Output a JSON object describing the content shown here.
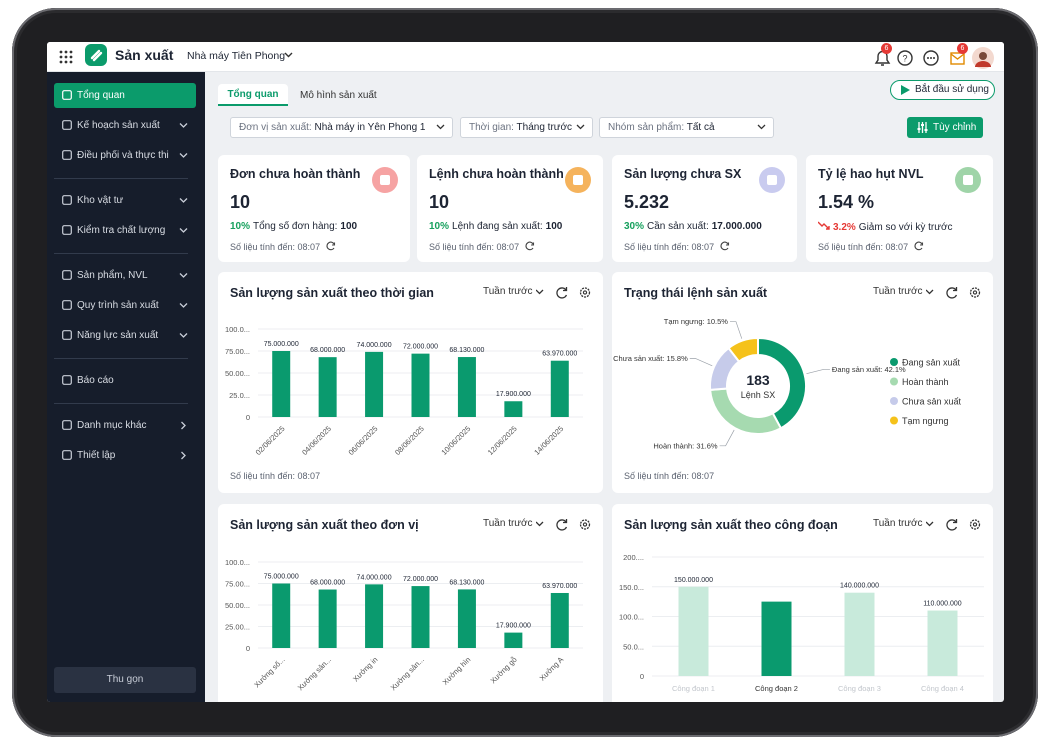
{
  "app": {
    "title": "Sản xuất",
    "factory": "Nhà máy Tiên Phong",
    "notification_count": 6,
    "message_count": 6
  },
  "sidebar": {
    "groups": [
      [
        {
          "label": "Tổng quan",
          "active": true,
          "menu": null
        },
        {
          "label": "Kế hoạch sản xuất",
          "menu": "down"
        },
        {
          "label": "Điều phối và thực thi",
          "menu": "down"
        }
      ],
      [
        {
          "label": "Kho vật tư",
          "menu": "down"
        },
        {
          "label": "Kiểm tra chất lượng",
          "menu": "down"
        }
      ],
      [
        {
          "label": "Sản phẩm, NVL",
          "menu": "down"
        },
        {
          "label": "Quy trình sản xuất",
          "menu": "down"
        },
        {
          "label": "Năng lực sản xuất",
          "menu": "down"
        }
      ],
      [
        {
          "label": "Báo cáo",
          "menu": null
        }
      ],
      [
        {
          "label": "Danh mục khác",
          "menu": "right"
        },
        {
          "label": "Thiết lập",
          "menu": "right"
        }
      ]
    ],
    "collapse": "Thu gọn"
  },
  "tabs": [
    "Tổng quan",
    "Mô hình sản xuất"
  ],
  "start_button": "Bắt đầu sử dụng",
  "filters": [
    {
      "label": "Đơn vị sản xuất:",
      "value": "Nhà máy in Yên Phong 1"
    },
    {
      "label": "Thời gian:",
      "value": "Tháng trước"
    },
    {
      "label": "Nhóm sản phẩm:",
      "value": "Tất cả"
    }
  ],
  "customize_button": "Tùy chỉnh",
  "kpis": [
    {
      "title": "Đơn chưa hoàn thành",
      "value": 10,
      "change": "10%",
      "note": "Tổng số đơn hàng:",
      "note_value": 100,
      "color": "#16a05d",
      "icon_color": "#f6a3a3",
      "updated": "Số liệu tính đến: 08:07"
    },
    {
      "title": "Lệnh chưa hoàn thành",
      "value": 10,
      "change": "10%",
      "note": "Lệnh đang sản xuất:",
      "note_value": 100,
      "color": "#16a05d",
      "icon_color": "#f5b35c",
      "updated": "Số liệu tính đến: 08:07"
    },
    {
      "title": "Sản lượng chưa SX",
      "value": "5.232",
      "change": "30%",
      "note": "Cần sản xuất:",
      "note_value": "17.000.000",
      "color": "#16a05d",
      "icon_color": "#c9cbef",
      "updated": "Số liệu tính đến: 08:07"
    },
    {
      "title": "Tỷ lệ hao hụt NVL",
      "value": "1.54 %",
      "change": "3.2%",
      "note": "Giảm so với kỳ trước",
      "color": "#e53935",
      "icon_color": "#9fd4a8",
      "updated": "Số liệu tính đến: 08:07"
    }
  ],
  "chart_data": [
    {
      "type": "bar",
      "title": "Sản lượng sản xuất theo thời gian",
      "period": "Tuần trước",
      "footnote": "Số liệu tính đến: 08:07",
      "categories": [
        "02/06/2025",
        "04/06/2025",
        "06/06/2025",
        "08/06/2025",
        "10/06/2025",
        "12/06/2025",
        "14/06/2025"
      ],
      "values": [
        75000000,
        68000000,
        74000000,
        72000000,
        68130000,
        17900000,
        63970000
      ],
      "value_labels": [
        "75.000.000",
        "68.000.000",
        "74.000.000",
        "72.000.000",
        "68.130.000",
        "17.900.000",
        "63.970.000"
      ],
      "color": "#0a9a6e",
      "ylim": [
        0,
        100000000
      ],
      "yticks": [
        0,
        {
          "value": 25000000,
          "label": "25.0..."
        },
        {
          "value": 50000000,
          "label": "50.00..."
        },
        {
          "value": 75000000,
          "label": "75.00..."
        },
        {
          "value": 100000000,
          "label": "100.0..."
        }
      ],
      "grid": true
    },
    {
      "type": "donut",
      "title": "Trạng thái lệnh sản xuất",
      "period": "Tuần trước",
      "footnote": "Số liệu tính đến: 08:07",
      "categories": [
        "Đang sản xuất",
        "Hoàn thành",
        "Chưa sản xuất",
        "Tạm ngưng"
      ],
      "values": [
        42.1,
        31.6,
        15.8,
        10.5
      ],
      "value_labels": [
        "Đang sản xuất: 42.1%",
        "Hoàn thành: 31.6%",
        "Chưa sản xuất: 15.8%",
        "Tạm ngưng: 10.5%"
      ],
      "colors": [
        "#0a9a6e",
        "#a6dab0",
        "#c6cbea",
        "#f5c21b"
      ],
      "center_value": 183,
      "center_label": "Lệnh SX",
      "legend": "right"
    },
    {
      "type": "bar",
      "title": "Sản lượng sản xuất theo đơn vị",
      "period": "Tuần trước",
      "categories": [
        "Xưởng số...",
        "Xưởng sản...",
        "Xưởng in",
        "Xưởng sản...",
        "Xưởng hìn",
        "Xưởng gỗ",
        "Xưởng A"
      ],
      "values": [
        75000000,
        68000000,
        74000000,
        72000000,
        68130000,
        17900000,
        63970000
      ],
      "value_labels": [
        "75.000.000",
        "68.000.000",
        "74.000.000",
        "72.000.000",
        "68.130.000",
        "17.900.000",
        "63.970.000"
      ],
      "color": "#0a9a6e",
      "ylim": [
        0,
        100000000
      ],
      "yticks": [
        0,
        {
          "value": 25000000,
          "label": "25.00..."
        },
        {
          "value": 50000000,
          "label": "50.00..."
        },
        {
          "value": 75000000,
          "label": "75.00..."
        },
        {
          "value": 100000000,
          "label": "100.0..."
        }
      ],
      "grid": true
    },
    {
      "type": "bar",
      "title": "Sản lượng sản xuất theo công đoạn",
      "period": "Tuần trước",
      "categories": [
        "Công đoạn 1",
        "Công đoạn 2",
        "Công đoạn 3",
        "Công đoạn 4"
      ],
      "values": [
        150000000,
        125000000,
        140000000,
        110000000
      ],
      "value_labels": [
        "150.000.000",
        null,
        "140.000.000",
        "110.000.000"
      ],
      "colors": [
        "#c8eadb",
        "#0a9a6e",
        "#c8eadb",
        "#c8eadb"
      ],
      "ylim": [
        0,
        200000000
      ],
      "yticks": [
        0,
        {
          "value": 50000000,
          "label": "50.0..."
        },
        {
          "value": 100000000,
          "label": "100.0..."
        },
        {
          "value": 150000000,
          "label": "150.0..."
        },
        {
          "value": 200000000,
          "label": "200...."
        }
      ],
      "grid": true
    }
  ]
}
